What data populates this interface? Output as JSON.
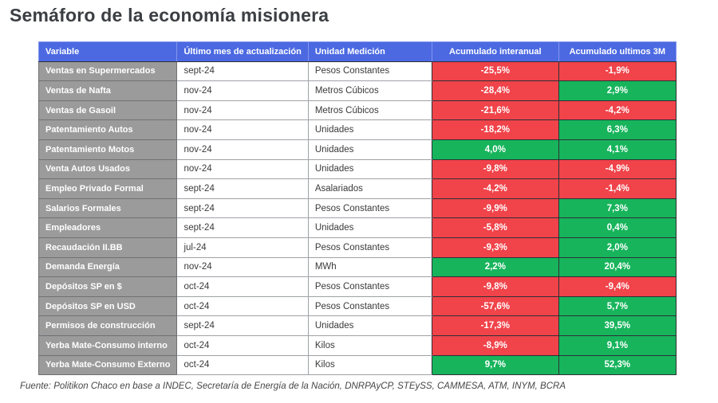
{
  "title": "Semáforo de la economía misionera",
  "source": "Fuente: Politikon Chaco en base a INDEC, Secretaría de Energía de la Nación, DNRPAyCP, STEySS, CAMMESA, ATM, INYM, BCRA",
  "colors": {
    "header_blue": "#4c69e2",
    "variable_gray": "#9b9b9b",
    "negative_red": "#f0434a",
    "positive_green": "#17b45c"
  },
  "chart_data": {
    "type": "table",
    "title": "Semáforo de la economía misionera",
    "columns": [
      "Variable",
      "Último mes de actualización",
      "Unidad Medición",
      "Acumulado interanual",
      "Acumulado ultimos 3M"
    ],
    "rows": [
      {
        "variable": "Ventas en Supermercados",
        "month": "sept-24",
        "unit": "Pesos Constantes",
        "interanual": "-25,5%",
        "interanual_status": "negative",
        "ultimos_3m": "-1,9%",
        "ultimos_3m_status": "negative"
      },
      {
        "variable": "Ventas de Nafta",
        "month": "nov-24",
        "unit": "Metros Cúbicos",
        "interanual": "-28,4%",
        "interanual_status": "negative",
        "ultimos_3m": "2,9%",
        "ultimos_3m_status": "positive"
      },
      {
        "variable": "Ventas de Gasoil",
        "month": "nov-24",
        "unit": "Metros Cúbicos",
        "interanual": "-21,6%",
        "interanual_status": "negative",
        "ultimos_3m": "-4,2%",
        "ultimos_3m_status": "negative"
      },
      {
        "variable": "Patentamiento Autos",
        "month": "nov-24",
        "unit": "Unidades",
        "interanual": "-18,2%",
        "interanual_status": "negative",
        "ultimos_3m": "6,3%",
        "ultimos_3m_status": "positive"
      },
      {
        "variable": "Patentamiento Motos",
        "month": "nov-24",
        "unit": "Unidades",
        "interanual": "4,0%",
        "interanual_status": "positive",
        "ultimos_3m": "4,1%",
        "ultimos_3m_status": "positive"
      },
      {
        "variable": "Venta Autos Usados",
        "month": "nov-24",
        "unit": "Unidades",
        "interanual": "-9,8%",
        "interanual_status": "negative",
        "ultimos_3m": "-4,9%",
        "ultimos_3m_status": "negative"
      },
      {
        "variable": "Empleo Privado Formal",
        "month": "sept-24",
        "unit": "Asalariados",
        "interanual": "-4,2%",
        "interanual_status": "negative",
        "ultimos_3m": "-1,4%",
        "ultimos_3m_status": "negative"
      },
      {
        "variable": "Salarios Formales",
        "month": "sept-24",
        "unit": "Pesos Constantes",
        "interanual": "-9,9%",
        "interanual_status": "negative",
        "ultimos_3m": "7,3%",
        "ultimos_3m_status": "positive"
      },
      {
        "variable": "Empleadores",
        "month": "sept-24",
        "unit": "Unidades",
        "interanual": "-5,8%",
        "interanual_status": "negative",
        "ultimos_3m": "0,4%",
        "ultimos_3m_status": "positive"
      },
      {
        "variable": "Recaudación II.BB",
        "month": "jul-24",
        "unit": "Pesos Constantes",
        "interanual": "-9,3%",
        "interanual_status": "negative",
        "ultimos_3m": "2,0%",
        "ultimos_3m_status": "positive"
      },
      {
        "variable": "Demanda Energía",
        "month": "nov-24",
        "unit": "MWh",
        "interanual": "2,2%",
        "interanual_status": "positive",
        "ultimos_3m": "20,4%",
        "ultimos_3m_status": "positive"
      },
      {
        "variable": "Depósitos SP en $",
        "month": "oct-24",
        "unit": "Pesos Constantes",
        "interanual": "-9,8%",
        "interanual_status": "negative",
        "ultimos_3m": "-9,4%",
        "ultimos_3m_status": "negative"
      },
      {
        "variable": "Depósitos SP en USD",
        "month": "oct-24",
        "unit": "Pesos Constantes",
        "interanual": "-57,6%",
        "interanual_status": "negative",
        "ultimos_3m": "5,7%",
        "ultimos_3m_status": "positive"
      },
      {
        "variable": "Permisos de construcción",
        "month": "sept-24",
        "unit": "Unidades",
        "interanual": "-17,3%",
        "interanual_status": "negative",
        "ultimos_3m": "39,5%",
        "ultimos_3m_status": "positive"
      },
      {
        "variable": "Yerba Mate-Consumo interno",
        "month": "oct-24",
        "unit": "Kilos",
        "interanual": "-8,9%",
        "interanual_status": "negative",
        "ultimos_3m": "9,1%",
        "ultimos_3m_status": "positive"
      },
      {
        "variable": "Yerba Mate-Consumo Externo",
        "month": "oct-24",
        "unit": "Kilos",
        "interanual": "9,7%",
        "interanual_status": "positive",
        "ultimos_3m": "52,3%",
        "ultimos_3m_status": "positive"
      }
    ],
    "status_colors": {
      "positive": "#17b45c",
      "negative": "#f0434a"
    },
    "layout": {
      "value_columns_centered": true,
      "grid": true
    }
  }
}
